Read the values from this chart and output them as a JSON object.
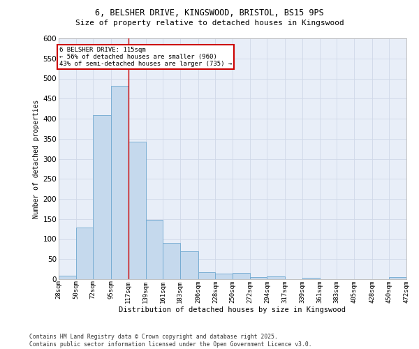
{
  "title_line1": "6, BELSHER DRIVE, KINGSWOOD, BRISTOL, BS15 9PS",
  "title_line2": "Size of property relative to detached houses in Kingswood",
  "xlabel": "Distribution of detached houses by size in Kingswood",
  "ylabel": "Number of detached properties",
  "footer": "Contains HM Land Registry data © Crown copyright and database right 2025.\nContains public sector information licensed under the Open Government Licence v3.0.",
  "bin_labels": [
    "28sqm",
    "50sqm",
    "72sqm",
    "95sqm",
    "117sqm",
    "139sqm",
    "161sqm",
    "183sqm",
    "206sqm",
    "228sqm",
    "250sqm",
    "272sqm",
    "294sqm",
    "317sqm",
    "339sqm",
    "361sqm",
    "383sqm",
    "405sqm",
    "428sqm",
    "450sqm",
    "472sqm"
  ],
  "bar_values": [
    8,
    128,
    408,
    481,
    343,
    148,
    91,
    70,
    18,
    14,
    15,
    6,
    7,
    0,
    3,
    0,
    0,
    0,
    0,
    5
  ],
  "bin_edges": [
    28,
    50,
    72,
    95,
    117,
    139,
    161,
    183,
    206,
    228,
    250,
    272,
    294,
    317,
    339,
    361,
    383,
    405,
    428,
    450,
    472
  ],
  "bar_color": "#c5d9ed",
  "bar_edge_color": "#6fa8d0",
  "grid_color": "#d0d8e8",
  "bg_color": "#e8eef8",
  "red_line_x": 117,
  "annotation_text": "6 BELSHER DRIVE: 115sqm\n← 56% of detached houses are smaller (960)\n43% of semi-detached houses are larger (735) →",
  "annotation_box_color": "#ffffff",
  "annotation_border_color": "#cc0000",
  "ylim": [
    0,
    600
  ],
  "yticks": [
    0,
    50,
    100,
    150,
    200,
    250,
    300,
    350,
    400,
    450,
    500,
    550,
    600
  ]
}
